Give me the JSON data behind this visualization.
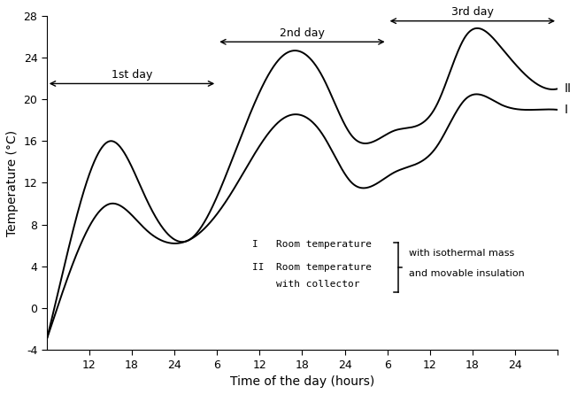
{
  "title": "",
  "xlabel": "Time of the day (hours)",
  "ylabel": "Temperature (°C)",
  "xlim": [
    6,
    78
  ],
  "ylim": [
    -4,
    28
  ],
  "yticks": [
    -4,
    0,
    4,
    8,
    12,
    16,
    20,
    24,
    28
  ],
  "xticks": [
    12,
    18,
    24,
    30,
    36,
    42,
    48,
    54,
    60,
    66,
    72,
    78
  ],
  "xticklabels": [
    "12",
    "18",
    "24",
    "6",
    "12",
    "18",
    "24",
    "6",
    "12",
    "18",
    "24",
    ""
  ],
  "line_color": "#000000",
  "background_color": "#ffffff",
  "curve1_label": "I",
  "curve2_label": "II",
  "day1_label": "1st day",
  "day2_label": "2nd day",
  "day3_label": "3rd day",
  "legend_line1": "I   Room temperature",
  "legend_line2": "II  Room temperature",
  "legend_line3": "    with collector",
  "legend_right1": "with isothermal mass",
  "legend_right2": "and movable insulation",
  "curve1_x_ctrl": [
    6,
    9,
    15,
    20,
    26,
    32,
    39,
    45,
    49,
    55,
    61,
    65,
    70,
    75,
    78
  ],
  "curve1_y_ctrl": [
    -3,
    3,
    10,
    7.5,
    6.5,
    11,
    18,
    16.5,
    12,
    13,
    15.5,
    20,
    19.5,
    19,
    19
  ],
  "curve2_x_ctrl": [
    6,
    9,
    15,
    20,
    26,
    32,
    39,
    45,
    49,
    55,
    61,
    65,
    70,
    75,
    78
  ],
  "curve2_y_ctrl": [
    -3,
    5.5,
    16,
    10.5,
    6.5,
    14,
    24,
    22,
    16.5,
    17,
    19.5,
    26,
    25,
    21.5,
    21
  ]
}
